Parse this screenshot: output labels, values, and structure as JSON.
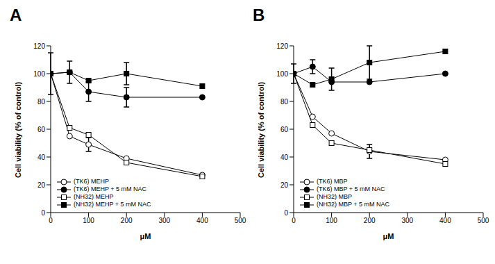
{
  "chart_data": [
    {
      "type": "line",
      "title": "A",
      "xlabel": "μM",
      "ylabel": "Cell viability (% of control)",
      "x": [
        0,
        50,
        100,
        200,
        400
      ],
      "xlim": [
        0,
        500
      ],
      "xticks": [
        0,
        100,
        200,
        300,
        400,
        500
      ],
      "ylim": [
        0,
        120
      ],
      "yticks": [
        0,
        20,
        40,
        60,
        80,
        100,
        120
      ],
      "grid": false,
      "legend": "lower left",
      "series": [
        {
          "name": "(TK6) MEHP",
          "color": "#000000",
          "marker": "open_circle",
          "values": [
            100,
            55,
            49,
            39,
            27
          ],
          "errors": [
            15,
            null,
            5,
            null,
            null
          ]
        },
        {
          "name": "(TK6) MEHP + 5 mM NAC",
          "color": "#000000",
          "marker": "circle",
          "values": [
            100,
            101,
            87,
            83,
            83
          ],
          "errors": [
            null,
            null,
            7,
            7,
            null
          ]
        },
        {
          "name": "(NH32) MEHP",
          "color": "#000000",
          "marker": "open_square",
          "values": [
            100,
            61,
            56,
            36,
            26
          ],
          "errors": [
            null,
            null,
            null,
            null,
            null
          ]
        },
        {
          "name": "(NH32) MEHP + 5 mM NAC",
          "color": "#000000",
          "marker": "square",
          "values": [
            100,
            101,
            95,
            100,
            91
          ],
          "errors": [
            null,
            8,
            null,
            8,
            null
          ]
        }
      ]
    },
    {
      "type": "line",
      "title": "B",
      "xlabel": "μM",
      "ylabel": "Cell viability (% of control)",
      "x": [
        0,
        50,
        100,
        200,
        400
      ],
      "xlim": [
        0,
        500
      ],
      "xticks": [
        0,
        100,
        200,
        300,
        400,
        500
      ],
      "ylim": [
        0,
        120
      ],
      "yticks": [
        0,
        20,
        40,
        60,
        80,
        100,
        120
      ],
      "grid": false,
      "legend": "lower left",
      "series": [
        {
          "name": "(TK6) MBP",
          "color": "#000000",
          "marker": "open_circle",
          "values": [
            100,
            69,
            57,
            44,
            38
          ],
          "errors": [
            7,
            null,
            null,
            5,
            null
          ]
        },
        {
          "name": "(TK6) MBP + 5 mM NAC",
          "color": "#000000",
          "marker": "circle",
          "values": [
            100,
            105,
            94,
            94,
            100
          ],
          "errors": [
            null,
            5,
            null,
            null,
            null
          ]
        },
        {
          "name": "(NH32) MBP",
          "color": "#000000",
          "marker": "open_square",
          "values": [
            100,
            63,
            50,
            45,
            35
          ],
          "errors": [
            null,
            null,
            null,
            null,
            null
          ]
        },
        {
          "name": "(NH32) MBP + 5 mM NAC",
          "color": "#000000",
          "marker": "square",
          "values": [
            100,
            92,
            96,
            108,
            116
          ],
          "errors": [
            null,
            null,
            8,
            12,
            null
          ]
        }
      ]
    }
  ]
}
